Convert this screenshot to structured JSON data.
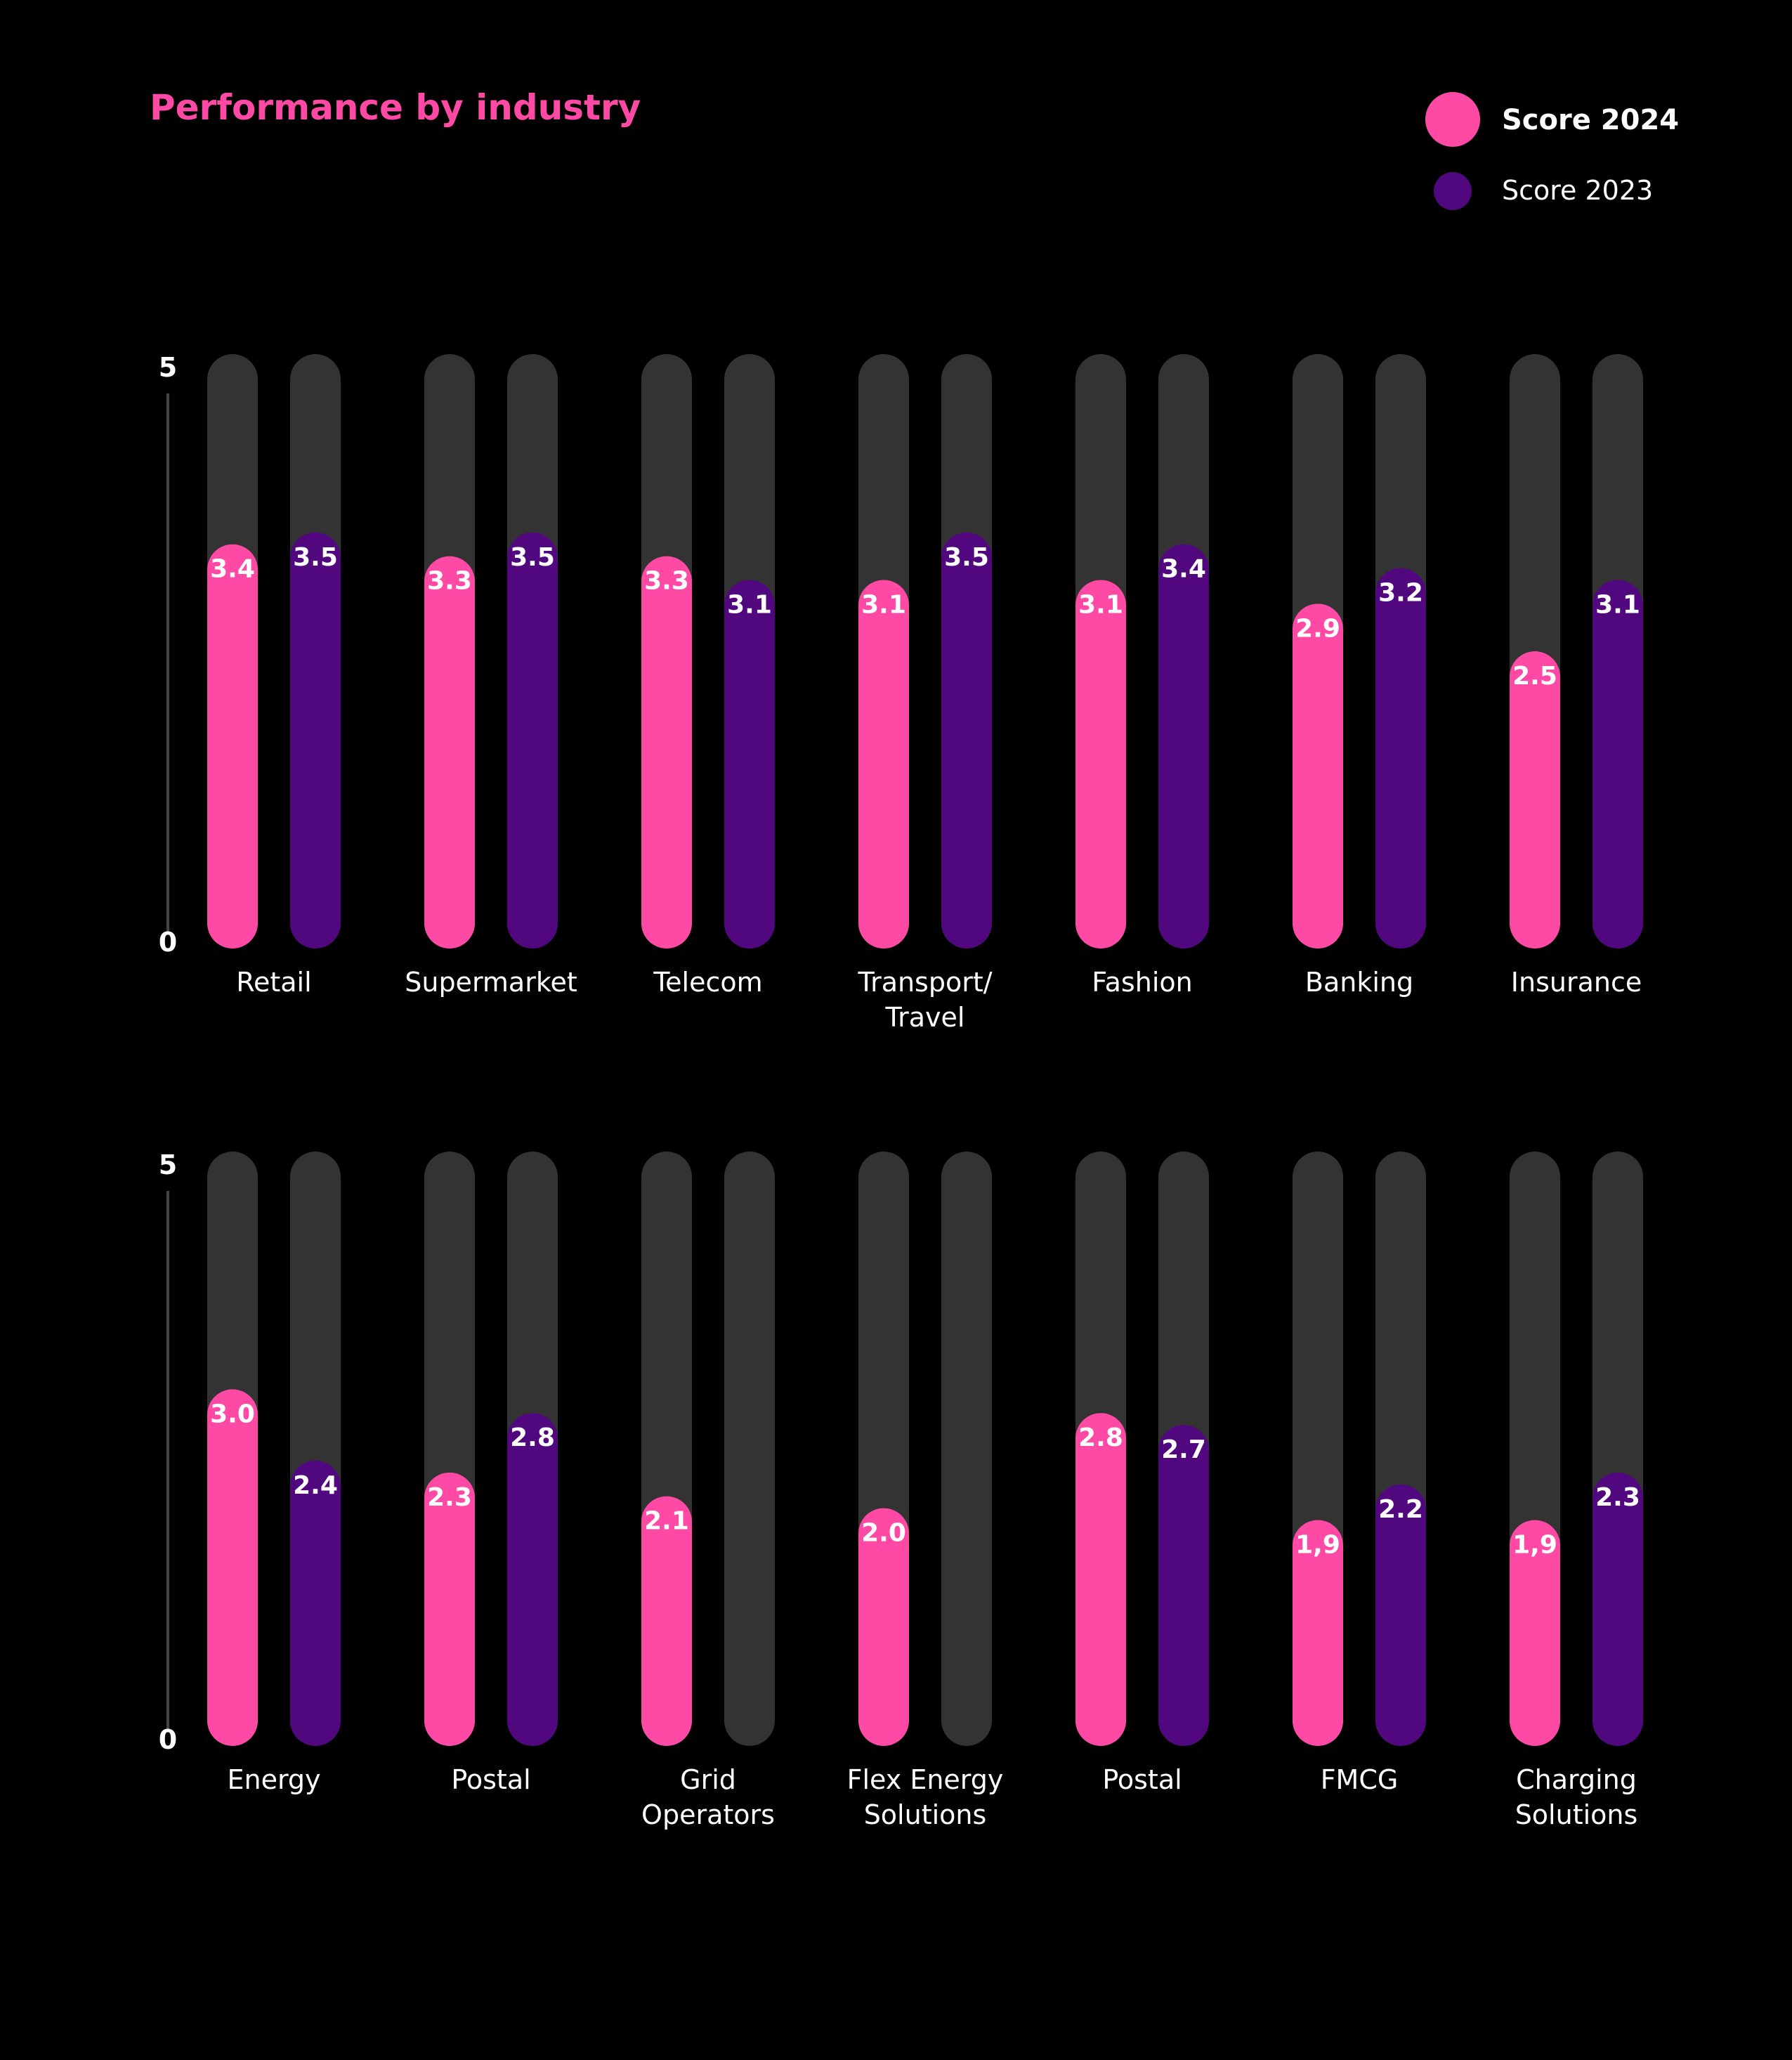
{
  "title": "Performance by industry",
  "legend": {
    "items": [
      {
        "label": "Score 2024",
        "color": "#ff4aa5",
        "bold": true
      },
      {
        "label": "Score 2023",
        "color": "#51087e",
        "bold": false
      }
    ]
  },
  "colors": {
    "background": "#000000",
    "track": "#333333",
    "score_2024": "#ff4aa5",
    "score_2023": "#51087e",
    "title": "#ff4aa5",
    "text": "#ffffff",
    "axis": "#444444"
  },
  "chart_data": [
    {
      "type": "bar",
      "ylim": [
        0,
        5
      ],
      "y_ticks": [
        "5",
        "0"
      ],
      "categories": [
        [
          "Retail"
        ],
        [
          "Supermarket"
        ],
        [
          "Telecom"
        ],
        [
          "Transport/",
          "Travel"
        ],
        [
          "Fashion"
        ],
        [
          "Banking"
        ],
        [
          "Insurance"
        ]
      ],
      "series": [
        {
          "name": "Score 2024",
          "values": [
            3.4,
            3.3,
            3.3,
            3.1,
            3.1,
            2.9,
            2.5
          ],
          "labels": [
            "3.4",
            "3.3",
            "3.3",
            "3.1",
            "3.1",
            "2.9",
            "2.5"
          ]
        },
        {
          "name": "Score 2023",
          "values": [
            3.5,
            3.5,
            3.1,
            3.5,
            3.4,
            3.2,
            3.1
          ],
          "labels": [
            "3.5",
            "3.5",
            "3.1",
            "3.5",
            "3.4",
            "3.2",
            "3.1"
          ]
        }
      ]
    },
    {
      "type": "bar",
      "ylim": [
        0,
        5
      ],
      "y_ticks": [
        "5",
        "0"
      ],
      "categories": [
        [
          "Energy"
        ],
        [
          "Postal"
        ],
        [
          "Grid",
          "Operators"
        ],
        [
          "Flex Energy",
          "Solutions"
        ],
        [
          "Postal"
        ],
        [
          "FMCG"
        ],
        [
          "Charging",
          "Solutions"
        ]
      ],
      "series": [
        {
          "name": "Score 2024",
          "values": [
            3.0,
            2.3,
            2.1,
            2.0,
            2.8,
            1.9,
            1.9
          ],
          "labels": [
            "3.0",
            "2.3",
            "2.1",
            "2.0",
            "2.8",
            "1,9",
            "1,9"
          ]
        },
        {
          "name": "Score 2023",
          "values": [
            2.4,
            2.8,
            null,
            null,
            2.7,
            2.2,
            2.3
          ],
          "labels": [
            "2.4",
            "2.8",
            "",
            "",
            "2.7",
            "2.2",
            "2.3"
          ]
        }
      ]
    }
  ]
}
